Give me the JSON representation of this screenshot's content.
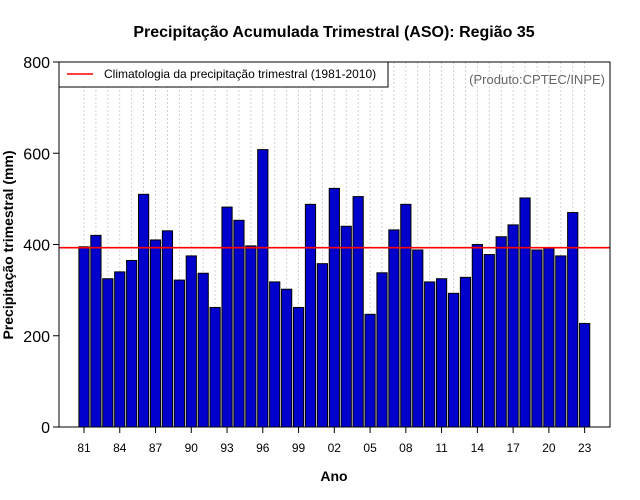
{
  "chart_data": {
    "type": "bar",
    "title": "Precipitação Acumulada Trimestral (ASO): Região 35",
    "xlabel": "Ano",
    "ylabel": "Precipitação trimestral (mm)",
    "ylim": [
      0,
      800
    ],
    "yticks": [
      0,
      200,
      400,
      600,
      800
    ],
    "grid": "vertical-dotted",
    "categories": [
      "1981",
      "1982",
      "1983",
      "1984",
      "1985",
      "1986",
      "1987",
      "1988",
      "1989",
      "1990",
      "1991",
      "1992",
      "1993",
      "1994",
      "1995",
      "1996",
      "1997",
      "1998",
      "1999",
      "2000",
      "2001",
      "2002",
      "2003",
      "2004",
      "2005",
      "2006",
      "2007",
      "2008",
      "2009",
      "2010",
      "2011",
      "2012",
      "2013",
      "2014",
      "2015",
      "2016",
      "2017",
      "2018",
      "2019",
      "2020",
      "2021",
      "2022",
      "2023"
    ],
    "tick_labels": [
      "81",
      "84",
      "87",
      "90",
      "93",
      "96",
      "99",
      "02",
      "05",
      "08",
      "11",
      "14",
      "17",
      "20",
      "23"
    ],
    "tick_indices": [
      0,
      3,
      6,
      9,
      12,
      15,
      18,
      21,
      24,
      27,
      30,
      33,
      36,
      39,
      42
    ],
    "values": [
      395,
      420,
      325,
      340,
      365,
      510,
      410,
      430,
      322,
      375,
      337,
      262,
      482,
      453,
      397,
      608,
      318,
      302,
      262,
      488,
      358,
      523,
      440,
      505,
      247,
      338,
      432,
      488,
      388,
      318,
      325,
      293,
      328,
      400,
      378,
      417,
      443,
      502,
      388,
      392,
      375,
      470,
      227
    ],
    "bar_color": "#0000cc",
    "climatology": {
      "value": 393,
      "label": "Climatologia da precipitação trimestral (1981-2010)",
      "color": "#ff0000"
    },
    "legend_position": "top-left",
    "credit": "(Produto:CPTEC/INPE)"
  }
}
